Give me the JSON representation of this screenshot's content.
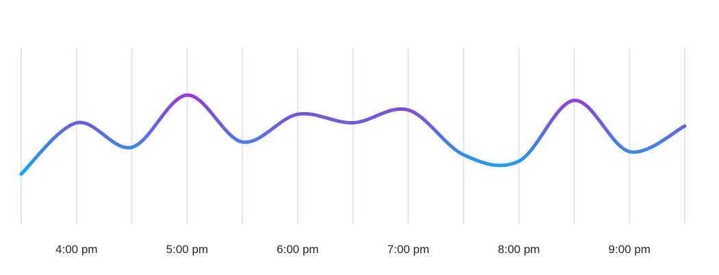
{
  "chart_data": {
    "type": "line",
    "title": "",
    "xlabel": "",
    "ylabel": "",
    "grid": "vertical",
    "legend": "none",
    "x": [
      3.5,
      4.0,
      4.5,
      5.0,
      5.5,
      6.0,
      6.5,
      7.0,
      7.5,
      8.0,
      8.5,
      9.0,
      9.5
    ],
    "values": [
      10,
      58,
      35,
      84,
      40,
      66,
      58,
      70,
      28,
      22,
      79,
      31,
      55
    ],
    "xlim": [
      3.5,
      9.5
    ],
    "ylim": [
      0,
      100
    ],
    "tick_labels": [
      {
        "x": 4.0,
        "label": "4:00 pm"
      },
      {
        "x": 5.0,
        "label": "5:00 pm"
      },
      {
        "x": 6.0,
        "label": "6:00 pm"
      },
      {
        "x": 7.0,
        "label": "7:00 pm"
      },
      {
        "x": 8.0,
        "label": "8:00 pm"
      },
      {
        "x": 9.0,
        "label": "9:00 pm"
      }
    ],
    "gridline_x": [
      3.5,
      4.0,
      4.5,
      5.0,
      5.5,
      6.0,
      6.5,
      7.0,
      7.5,
      8.0,
      8.5,
      9.0,
      9.5
    ],
    "colors": {
      "gradient_low": "#00b8f0",
      "gradient_high": "#b61fd2",
      "grid": "#dde6f2",
      "tick_text": "#222831"
    }
  }
}
